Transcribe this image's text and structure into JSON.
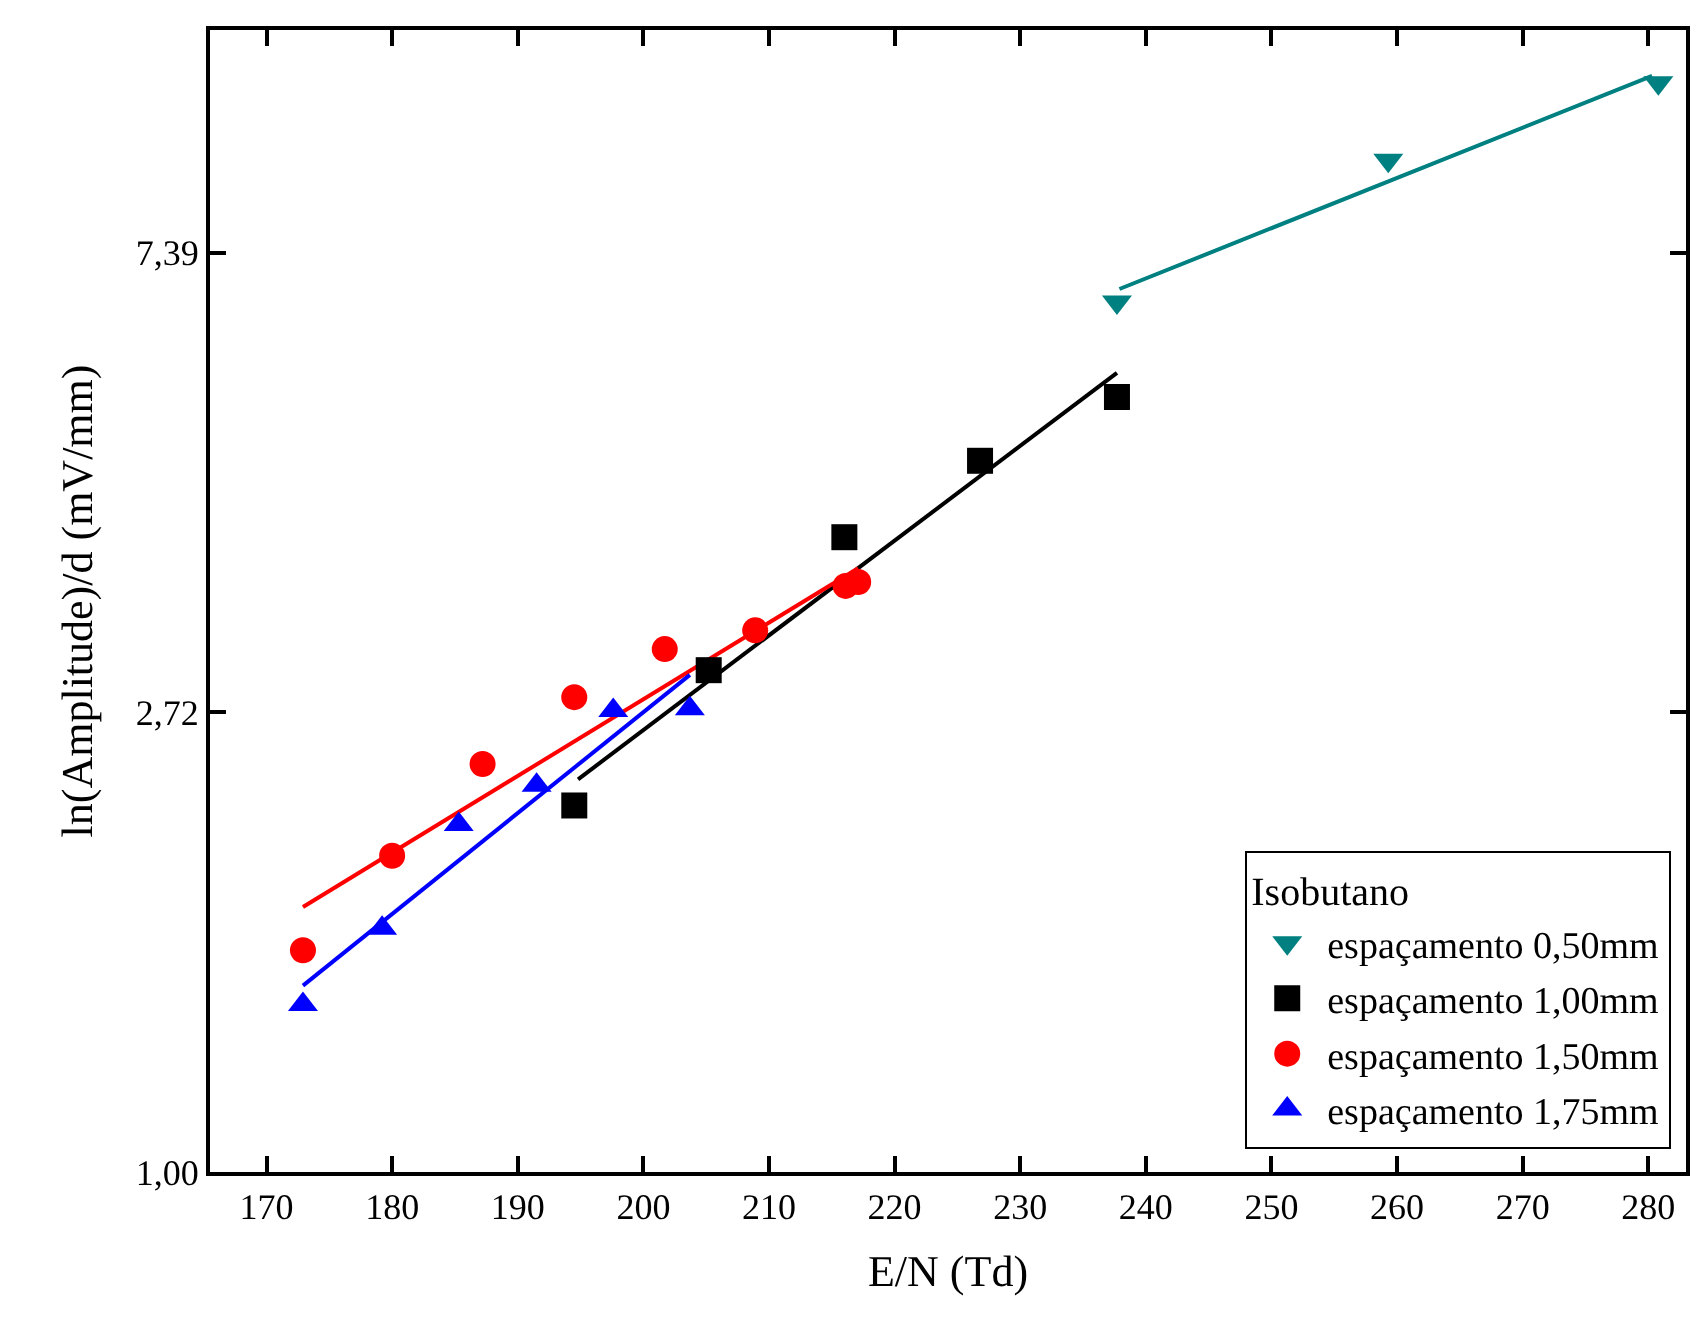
{
  "chart_data": {
    "type": "scatter",
    "xlabel": "E/N (Td)",
    "ylabel": "ln(Amplitude)/d (mV/mm)",
    "legend_title": "Isobutano",
    "legend": "bottom right",
    "log": "y",
    "xlim": [
      165.5,
      283
    ],
    "xticks": [
      170,
      180,
      190,
      200,
      210,
      220,
      230,
      240,
      250,
      260,
      270,
      280
    ],
    "ylim": [
      1.0,
      12
    ],
    "yticks": [
      {
        "value": 1.0,
        "label": "1,00"
      },
      {
        "value": 2.72,
        "label": "2,72"
      },
      {
        "value": 7.39,
        "label": "7,39"
      }
    ],
    "series": [
      {
        "name": "espaçamento 0,50mm",
        "marker": "triangle-down",
        "color": "#008080",
        "x": [
          237.7,
          259.3,
          280.8
        ],
        "values": [
          6.64,
          9.04,
          10.7
        ]
      },
      {
        "name": "espaçamento 1,00mm",
        "marker": "square",
        "color": "#000000",
        "x": [
          194.5,
          205.2,
          216.0,
          226.8,
          237.7
        ],
        "values": [
          2.22,
          2.98,
          3.98,
          4.7,
          5.4
        ]
      },
      {
        "name": "espaçamento 1,50mm",
        "marker": "circle",
        "color": "#ff0000",
        "x": [
          172.9,
          180.0,
          187.2,
          194.5,
          201.7,
          208.9,
          216.1,
          217.1
        ],
        "values": [
          1.62,
          1.99,
          2.43,
          2.81,
          3.12,
          3.25,
          3.58,
          3.61
        ]
      },
      {
        "name": "espaçamento 1,75mm",
        "marker": "triangle",
        "color": "#0000ff",
        "x": [
          172.9,
          179.2,
          185.3,
          191.5,
          197.6,
          203.7
        ],
        "values": [
          1.44,
          1.7,
          2.13,
          2.32,
          2.73,
          2.74
        ]
      },
      {
        "type": "line",
        "color": "#008080",
        "x": [
          237.9,
          280.3
        ],
        "values": [
          6.83,
          10.86
        ]
      },
      {
        "type": "line",
        "color": "#000000",
        "x": [
          194.8,
          237.7
        ],
        "values": [
          2.35,
          5.69
        ]
      },
      {
        "type": "line",
        "color": "#ff0000",
        "x": [
          172.9,
          217.1
        ],
        "values": [
          1.78,
          3.72
        ]
      },
      {
        "type": "line",
        "color": "#0000ff",
        "x": [
          172.9,
          203.7
        ],
        "values": [
          1.5,
          2.95
        ]
      }
    ]
  }
}
